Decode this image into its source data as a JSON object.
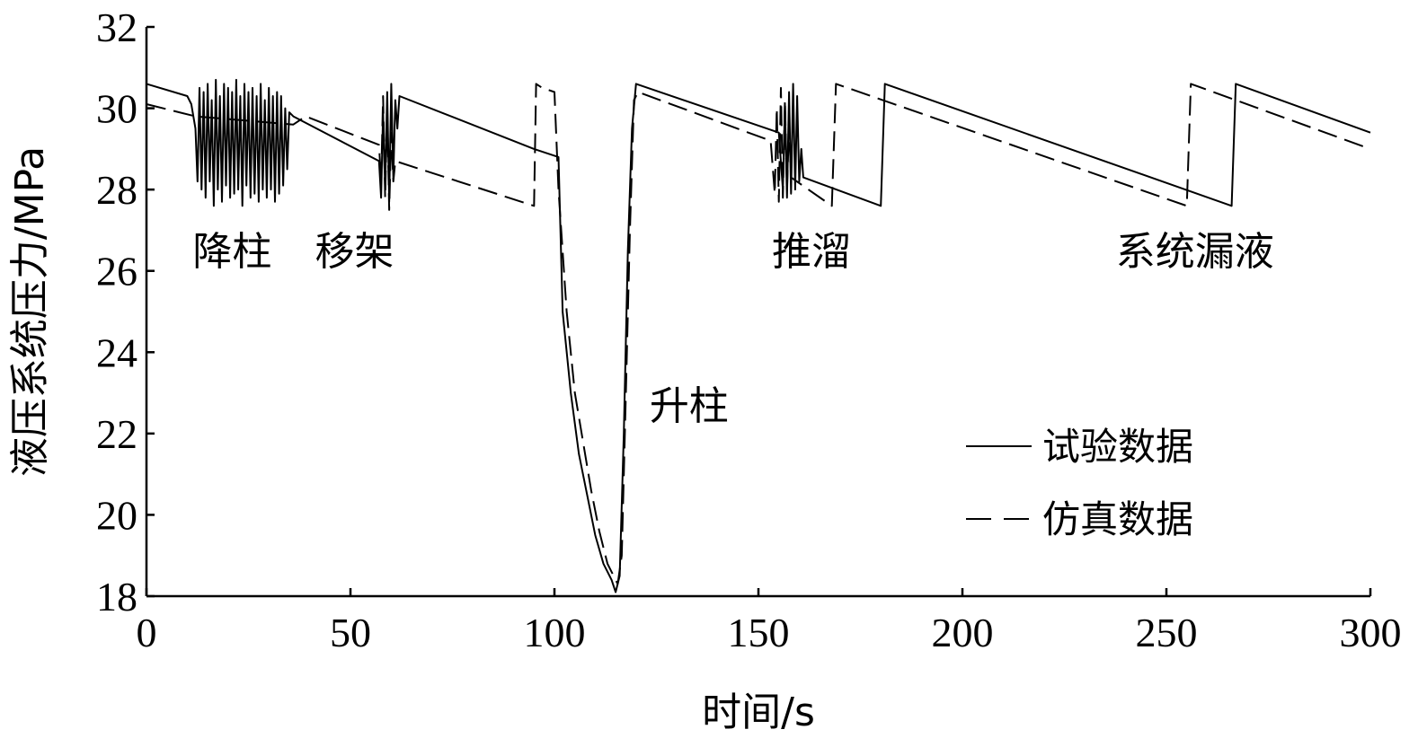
{
  "chart_data": {
    "type": "line",
    "title": "",
    "xlabel": "时间/s",
    "ylabel": "液压系统压力/MPa",
    "xlim": [
      0,
      300
    ],
    "ylim": [
      18,
      32
    ],
    "xticks": [
      0,
      50,
      100,
      150,
      200,
      250,
      300
    ],
    "yticks": [
      18,
      20,
      22,
      24,
      26,
      28,
      30,
      32
    ],
    "grid": false,
    "legend_position": "lower-right",
    "annotations": [
      {
        "text": "降柱",
        "x": 21,
        "y": 26.5
      },
      {
        "text": "移架",
        "x": 51,
        "y": 26.5
      },
      {
        "text": "升柱",
        "x": 133,
        "y": 22.7
      },
      {
        "text": "推溜",
        "x": 163,
        "y": 26.5
      },
      {
        "text": "系统漏液",
        "x": 257,
        "y": 26.5
      }
    ],
    "series": [
      {
        "name": "试验数据",
        "style": "solid",
        "points": [
          [
            0,
            30.6
          ],
          [
            10,
            30.3
          ],
          [
            11,
            30.1
          ],
          [
            12,
            29.5
          ],
          [
            12.5,
            28.2
          ],
          [
            13,
            30.5
          ],
          [
            13.5,
            28.0
          ],
          [
            14,
            30.4
          ],
          [
            14.5,
            27.8
          ],
          [
            15,
            30.6
          ],
          [
            15.5,
            28.2
          ],
          [
            16,
            30.2
          ],
          [
            16.5,
            27.6
          ],
          [
            17,
            30.7
          ],
          [
            17.5,
            28.0
          ],
          [
            18,
            30.3
          ],
          [
            18.5,
            27.7
          ],
          [
            19,
            30.6
          ],
          [
            19.5,
            28.1
          ],
          [
            20,
            30.5
          ],
          [
            20.5,
            27.8
          ],
          [
            21,
            30.4
          ],
          [
            21.5,
            27.9
          ],
          [
            22,
            30.7
          ],
          [
            22.5,
            28.0
          ],
          [
            23,
            30.3
          ],
          [
            23.5,
            27.6
          ],
          [
            24,
            30.6
          ],
          [
            24.5,
            28.1
          ],
          [
            25,
            30.4
          ],
          [
            25.5,
            27.8
          ],
          [
            26,
            30.5
          ],
          [
            26.5,
            27.9
          ],
          [
            27,
            30.3
          ],
          [
            27.5,
            27.7
          ],
          [
            28,
            30.6
          ],
          [
            28.5,
            28.0
          ],
          [
            29,
            30.2
          ],
          [
            29.5,
            27.8
          ],
          [
            30,
            30.5
          ],
          [
            30.5,
            28.0
          ],
          [
            31,
            30.3
          ],
          [
            31.5,
            27.7
          ],
          [
            32,
            30.4
          ],
          [
            32.5,
            27.9
          ],
          [
            33,
            30.3
          ],
          [
            33.5,
            28.1
          ],
          [
            34,
            30.0
          ],
          [
            34.5,
            28.5
          ],
          [
            35,
            29.9
          ],
          [
            36,
            29.8
          ],
          [
            57,
            28.7
          ],
          [
            57.5,
            27.8
          ],
          [
            58,
            29.9
          ],
          [
            58.5,
            28.0
          ],
          [
            59,
            30.4
          ],
          [
            59.5,
            27.7
          ],
          [
            60,
            30.6
          ],
          [
            60.5,
            28.3
          ],
          [
            61,
            30.2
          ],
          [
            61.5,
            29.5
          ],
          [
            62,
            30.3
          ],
          [
            95,
            29.0
          ],
          [
            101,
            28.8
          ],
          [
            102,
            25.0
          ],
          [
            104,
            23.0
          ],
          [
            106,
            21.5
          ],
          [
            108,
            20.5
          ],
          [
            110,
            19.5
          ],
          [
            112,
            18.8
          ],
          [
            114,
            18.4
          ],
          [
            115,
            18.1
          ],
          [
            116,
            18.5
          ],
          [
            117,
            22.0
          ],
          [
            118,
            26.5
          ],
          [
            119,
            29.5
          ],
          [
            120,
            30.6
          ],
          [
            155,
            29.4
          ],
          [
            156,
            28.0
          ],
          [
            156.5,
            30.1
          ],
          [
            157,
            27.8
          ],
          [
            157.5,
            30.4
          ],
          [
            158,
            27.9
          ],
          [
            158.5,
            30.6
          ],
          [
            159,
            28.0
          ],
          [
            159.5,
            30.3
          ],
          [
            160,
            28.2
          ],
          [
            160.5,
            29.0
          ],
          [
            161,
            28.3
          ],
          [
            180,
            27.6
          ],
          [
            181,
            30.6
          ],
          [
            266,
            27.6
          ],
          [
            267,
            30.6
          ],
          [
            300,
            29.4
          ]
        ]
      },
      {
        "name": "仿真数据",
        "style": "dashed",
        "points": [
          [
            0,
            30.1
          ],
          [
            12,
            29.8
          ],
          [
            36,
            29.6
          ],
          [
            39,
            29.8
          ],
          [
            57,
            29.1
          ],
          [
            57.5,
            28.2
          ],
          [
            58,
            30.3
          ],
          [
            58.5,
            27.8
          ],
          [
            59,
            30.0
          ],
          [
            59.5,
            27.5
          ],
          [
            60,
            29.4
          ],
          [
            60.5,
            28.2
          ],
          [
            61,
            28.7
          ],
          [
            95,
            27.6
          ],
          [
            95.5,
            30.6
          ],
          [
            97,
            30.5
          ],
          [
            100,
            30.4
          ],
          [
            101,
            28.0
          ],
          [
            103,
            25.0
          ],
          [
            105,
            23.0
          ],
          [
            107,
            21.8
          ],
          [
            109,
            20.6
          ],
          [
            111,
            19.6
          ],
          [
            113,
            18.8
          ],
          [
            114.5,
            18.5
          ],
          [
            115.5,
            18.3
          ],
          [
            116.5,
            19.0
          ],
          [
            117.5,
            23.0
          ],
          [
            118.5,
            27.0
          ],
          [
            119.5,
            30.2
          ],
          [
            120.5,
            30.4
          ],
          [
            153,
            29.2
          ],
          [
            154,
            27.9
          ],
          [
            154.5,
            30.0
          ],
          [
            155,
            27.7
          ],
          [
            155.5,
            30.5
          ],
          [
            156,
            27.8
          ],
          [
            156.5,
            30.2
          ],
          [
            157,
            28.0
          ],
          [
            157.5,
            29.6
          ],
          [
            158,
            28.3
          ],
          [
            168,
            27.6
          ],
          [
            169,
            30.6
          ],
          [
            255,
            27.6
          ],
          [
            256,
            30.6
          ],
          [
            300,
            29.0
          ]
        ]
      }
    ]
  }
}
